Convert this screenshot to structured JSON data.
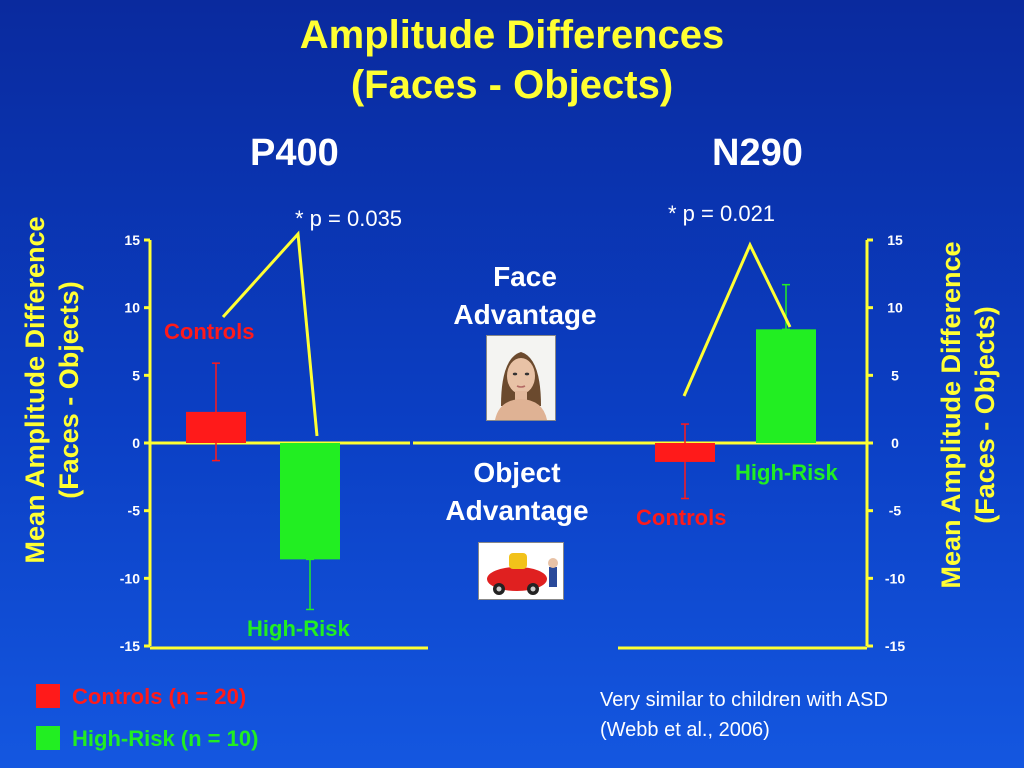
{
  "slide": {
    "title_line1": "Amplitude Differences",
    "title_line2": "(Faces - Objects)",
    "face_advantage": [
      "Face",
      "Advantage"
    ],
    "object_advantage": [
      "Object",
      "Advantage"
    ],
    "note_line1": "Very similar to children with ASD",
    "note_line2": "(Webb et al., 2006)",
    "legend": [
      {
        "label": "Controls (n = 20)",
        "color": "#ff1a1a"
      },
      {
        "label": "High-Risk (n = 10)",
        "color": "#22ee22"
      }
    ]
  },
  "chart_data": [
    {
      "type": "bar",
      "title": "P400",
      "ylabel_line1": "Mean Amplitude Difference",
      "ylabel_line2": "(Faces - Objects)",
      "ylim": [
        -15,
        15
      ],
      "yticks": [
        "15",
        "10",
        "5",
        "0",
        "-5",
        "-10",
        "-15"
      ],
      "annotation": "* p = 0.035",
      "series": [
        {
          "name": "Controls",
          "value": 2.3,
          "err_upper": 5.9,
          "err_lower": -1.3,
          "color": "#ff1a1a"
        },
        {
          "name": "High-Risk",
          "value": -8.6,
          "err_upper": -8.6,
          "err_lower": -12.3,
          "color": "#22ee22"
        }
      ]
    },
    {
      "type": "bar",
      "title": "N290",
      "ylabel_line1": "Mean Amplitude Difference",
      "ylabel_line2": "(Faces - Objects)",
      "ylim": [
        -15,
        15
      ],
      "yticks": [
        "15",
        "10",
        "5",
        "0",
        "-5",
        "-10",
        "-15"
      ],
      "annotation": "* p = 0.021",
      "series": [
        {
          "name": "Controls",
          "value": -1.4,
          "err_upper": 1.4,
          "err_lower": -4.1,
          "color": "#ff1a1a"
        },
        {
          "name": "High-Risk",
          "value": 8.4,
          "err_upper": 11.7,
          "err_lower": 8.4,
          "color": "#22ee22"
        }
      ]
    }
  ]
}
